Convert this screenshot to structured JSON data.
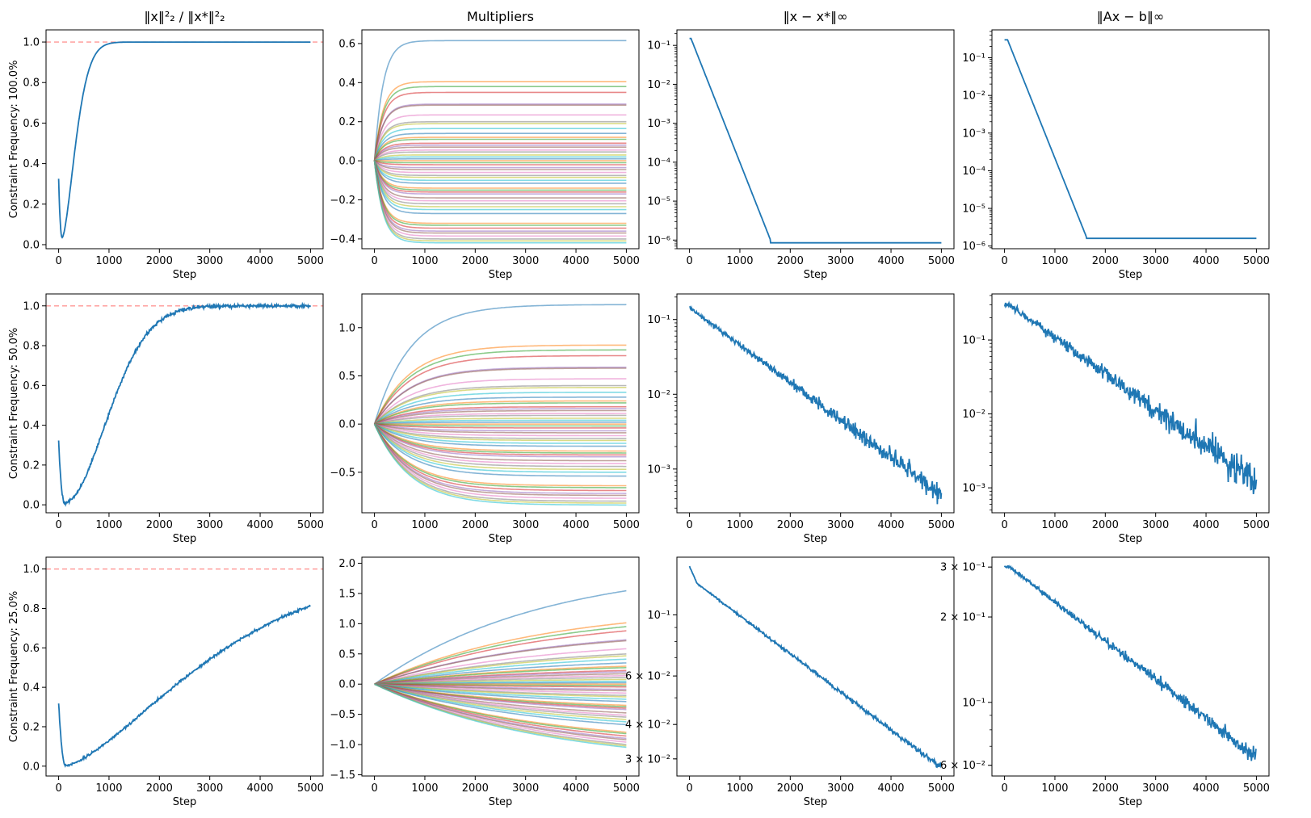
{
  "figure": {
    "col_titles": [
      "‖x‖²₂ / ‖x*‖²₂",
      "Multipliers",
      "‖x − x*‖∞",
      "‖Ax − b‖∞"
    ],
    "row_ylabels": [
      "Constraint Frequency: 100.0%",
      "Constraint Frequency: 50.0%",
      "Constraint Frequency: 25.0%"
    ],
    "xlabel": "Step",
    "colors": {
      "main": "#1f77b4",
      "reference": "#ff9896",
      "palette": [
        "#1f77b4",
        "#ff7f0e",
        "#2ca02c",
        "#d62728",
        "#9467bd",
        "#8c564b",
        "#e377c2",
        "#7f7f7f",
        "#bcbd22",
        "#17becf"
      ]
    }
  },
  "chart_data": [
    {
      "id": "r0c0",
      "type": "line",
      "title": "‖x‖²₂ / ‖x*‖²₂",
      "xlabel": "Step",
      "ylabel": "Constraint Frequency: 100.0%",
      "xlim": [
        -250,
        5250
      ],
      "ylim": [
        -0.02,
        1.06
      ],
      "xticks": [
        0,
        1000,
        2000,
        3000,
        4000,
        5000
      ],
      "yticks": [
        0,
        0.2,
        0.4,
        0.6,
        0.8,
        1.0
      ],
      "ytick_labels": [
        "0.0",
        "0.2",
        "0.4",
        "0.6",
        "0.8",
        "1.0"
      ],
      "yscale": "linear",
      "ref_line": 1.0,
      "curve": {
        "kind": "ratio",
        "min_step": 70,
        "min_val": 0.035,
        "rise_tau": 350,
        "rise_power": 1.6
      },
      "noise": 0.0
    },
    {
      "id": "r0c1",
      "type": "line",
      "title": "Multipliers",
      "xlabel": "Step",
      "xlim": [
        -250,
        5250
      ],
      "ylim": [
        -0.45,
        0.67
      ],
      "xticks": [
        0,
        1000,
        2000,
        3000,
        4000,
        5000
      ],
      "yticks": [
        -0.4,
        -0.2,
        0.0,
        0.2,
        0.4,
        0.6
      ],
      "ytick_labels": [
        "−0.4",
        "−0.2",
        "0.0",
        "0.2",
        "0.4",
        "0.6"
      ],
      "yscale": "linear",
      "multiplier_tau": 170,
      "multiplier_finals": [
        0.615,
        0.405,
        0.38,
        0.35,
        0.29,
        0.285,
        0.235,
        0.2,
        0.19,
        0.165,
        0.14,
        0.12,
        0.11,
        0.09,
        0.08,
        0.07,
        0.055,
        0.045,
        0.03,
        0.02,
        0.01,
        0.0,
        -0.01,
        -0.02,
        -0.035,
        -0.045,
        -0.06,
        -0.075,
        -0.085,
        -0.1,
        -0.115,
        -0.14,
        -0.15,
        -0.16,
        -0.17,
        -0.19,
        -0.205,
        -0.22,
        -0.235,
        -0.25,
        -0.27,
        -0.32,
        -0.33,
        -0.345,
        -0.36,
        -0.37,
        -0.385,
        -0.4,
        -0.41,
        -0.42
      ]
    },
    {
      "id": "r0c2",
      "type": "line",
      "title": "‖x − x*‖∞",
      "xlabel": "Step",
      "xlim": [
        -250,
        5250
      ],
      "ylim": [
        6e-07,
        0.25
      ],
      "xticks": [
        0,
        1000,
        2000,
        3000,
        4000,
        5000
      ],
      "yticks": [
        1e-06,
        1e-05,
        0.0001,
        0.001,
        0.01,
        0.1
      ],
      "ytick_labels": [
        "10⁻⁶",
        "10⁻⁵",
        "10⁻⁴",
        "10⁻³",
        "10⁻²",
        "10⁻¹"
      ],
      "yscale": "log",
      "curve": {
        "kind": "decay",
        "start": 0.15,
        "end": 8.5e-07,
        "rate": 0.00755,
        "hold": 30,
        "floor_step": 1600
      },
      "noise": 0.0
    },
    {
      "id": "r0c3",
      "type": "line",
      "title": "‖Ax − b‖∞",
      "xlabel": "Step",
      "xlim": [
        -250,
        5250
      ],
      "ylim": [
        8.5e-07,
        0.55
      ],
      "xticks": [
        0,
        1000,
        2000,
        3000,
        4000,
        5000
      ],
      "yticks": [
        1e-06,
        1e-05,
        0.0001,
        0.001,
        0.01,
        0.1
      ],
      "ytick_labels": [
        "10⁻⁶",
        "10⁻⁵",
        "10⁻⁴",
        "10⁻³",
        "10⁻²",
        "10⁻¹"
      ],
      "yscale": "log",
      "curve": {
        "kind": "decay",
        "start": 0.3,
        "end": 1.6e-06,
        "rate": 0.0077,
        "hold": 60,
        "floor_step": 1620
      },
      "noise": 0.0
    },
    {
      "id": "r1c0",
      "type": "line",
      "xlabel": "Step",
      "ylabel": "Constraint Frequency: 50.0%",
      "xlim": [
        -250,
        5250
      ],
      "ylim": [
        -0.04,
        1.06
      ],
      "xticks": [
        0,
        1000,
        2000,
        3000,
        4000,
        5000
      ],
      "yticks": [
        0,
        0.2,
        0.4,
        0.6,
        0.8,
        1.0
      ],
      "ytick_labels": [
        "0.0",
        "0.2",
        "0.4",
        "0.6",
        "0.8",
        "1.0"
      ],
      "yscale": "linear",
      "ref_line": 1.0,
      "curve": {
        "kind": "ratio",
        "min_step": 120,
        "min_val": 0.01,
        "rise_tau": 1150,
        "rise_power": 1.9
      },
      "noise": 0.004
    },
    {
      "id": "r1c1",
      "type": "line",
      "xlabel": "Step",
      "xlim": [
        -250,
        5250
      ],
      "ylim": [
        -0.92,
        1.35
      ],
      "xticks": [
        0,
        1000,
        2000,
        3000,
        4000,
        5000
      ],
      "yticks": [
        -0.5,
        0.0,
        0.5,
        1.0
      ],
      "ytick_labels": [
        "−0.5",
        "0.0",
        "0.5",
        "1.0"
      ],
      "yscale": "linear",
      "multiplier_tau": 700,
      "multiplier_finals": [
        1.24,
        0.82,
        0.77,
        0.71,
        0.59,
        0.58,
        0.47,
        0.4,
        0.38,
        0.33,
        0.28,
        0.24,
        0.22,
        0.18,
        0.16,
        0.14,
        0.11,
        0.09,
        0.06,
        0.04,
        0.02,
        0.0,
        -0.02,
        -0.04,
        -0.07,
        -0.09,
        -0.12,
        -0.15,
        -0.17,
        -0.2,
        -0.23,
        -0.28,
        -0.3,
        -0.32,
        -0.34,
        -0.38,
        -0.41,
        -0.44,
        -0.47,
        -0.5,
        -0.54,
        -0.64,
        -0.66,
        -0.69,
        -0.72,
        -0.74,
        -0.77,
        -0.8,
        -0.82,
        -0.84
      ]
    },
    {
      "id": "r1c2",
      "type": "line",
      "xlabel": "Step",
      "xlim": [
        -250,
        5250
      ],
      "ylim": [
        0.00026,
        0.22
      ],
      "xticks": [
        0,
        1000,
        2000,
        3000,
        4000,
        5000
      ],
      "yticks": [
        0.001,
        0.01,
        0.1
      ],
      "ytick_labels": [
        "10⁻³",
        "10⁻²",
        "10⁻¹"
      ],
      "yscale": "log",
      "curve": {
        "kind": "exp",
        "start": 0.145,
        "end": 0.00045
      },
      "noise": 0.16
    },
    {
      "id": "r1c3",
      "type": "line",
      "xlabel": "Step",
      "xlim": [
        -250,
        5250
      ],
      "ylim": [
        0.00046,
        0.42
      ],
      "xticks": [
        0,
        1000,
        2000,
        3000,
        4000,
        5000
      ],
      "yticks": [
        0.001,
        0.01,
        0.1
      ],
      "ytick_labels": [
        "10⁻³",
        "10⁻²",
        "10⁻¹"
      ],
      "yscale": "log",
      "curve": {
        "kind": "exp",
        "start": 0.3,
        "end": 0.0012,
        "hold": 90
      },
      "noise": 0.26
    },
    {
      "id": "r2c0",
      "type": "line",
      "xlabel": "Step",
      "ylabel": "Constraint Frequency: 25.0%",
      "xlim": [
        -250,
        5250
      ],
      "ylim": [
        -0.05,
        1.06
      ],
      "xticks": [
        0,
        1000,
        2000,
        3000,
        4000,
        5000
      ],
      "yticks": [
        0,
        0.2,
        0.4,
        0.6,
        0.8,
        1.0
      ],
      "ytick_labels": [
        "0.0",
        "0.2",
        "0.4",
        "0.6",
        "0.8",
        "1.0"
      ],
      "yscale": "linear",
      "ref_line": 1.0,
      "curve": {
        "kind": "ratio",
        "min_step": 140,
        "min_val": 0.003,
        "rise_tau": 3400,
        "rise_power": 1.45
      },
      "noise": 0.003
    },
    {
      "id": "r2c1",
      "type": "line",
      "xlabel": "Step",
      "xlim": [
        -250,
        5250
      ],
      "ylim": [
        -1.52,
        2.1
      ],
      "xticks": [
        0,
        1000,
        2000,
        3000,
        4000,
        5000
      ],
      "yticks": [
        -1.5,
        -1.0,
        -0.5,
        0.0,
        0.5,
        1.0,
        1.5,
        2.0
      ],
      "ytick_labels": [
        "−1.5",
        "−1.0",
        "−0.5",
        "0.0",
        "0.5",
        "1.0",
        "1.5",
        "2.0"
      ],
      "yscale": "linear",
      "multiplier_tau": 3300,
      "multiplier_finals": [
        1.98,
        1.3,
        1.22,
        1.13,
        0.94,
        0.92,
        0.75,
        0.64,
        0.6,
        0.53,
        0.45,
        0.38,
        0.35,
        0.29,
        0.26,
        0.22,
        0.18,
        0.14,
        0.1,
        0.06,
        0.03,
        0.0,
        -0.03,
        -0.06,
        -0.11,
        -0.14,
        -0.19,
        -0.24,
        -0.27,
        -0.32,
        -0.37,
        -0.45,
        -0.48,
        -0.51,
        -0.54,
        -0.61,
        -0.66,
        -0.7,
        -0.75,
        -0.8,
        -0.86,
        -1.02,
        -1.05,
        -1.1,
        -1.15,
        -1.18,
        -1.23,
        -1.28,
        -1.31,
        -1.34
      ]
    },
    {
      "id": "r2c2",
      "type": "line",
      "xlabel": "Step",
      "xlim": [
        -250,
        5250
      ],
      "ylim": [
        0.026,
        0.162
      ],
      "xticks": [
        0,
        1000,
        2000,
        3000,
        4000,
        5000
      ],
      "yticks": [
        0.03,
        0.04,
        0.06,
        0.1
      ],
      "ytick_labels": [
        "3 × 10⁻²",
        "4 × 10⁻²",
        "6 × 10⁻²",
        "10⁻¹"
      ],
      "yscale": "log",
      "curve": {
        "kind": "kink",
        "start": 0.15,
        "knee_step": 150,
        "knee_val": 0.13,
        "end": 0.0278
      },
      "noise": 0.012
    },
    {
      "id": "r2c3",
      "type": "line",
      "xlabel": "Step",
      "xlim": [
        -250,
        5250
      ],
      "ylim": [
        0.055,
        0.325
      ],
      "xticks": [
        0,
        1000,
        2000,
        3000,
        4000,
        5000
      ],
      "yticks": [
        0.06,
        0.1,
        0.2,
        0.3
      ],
      "ytick_labels": [
        "6 × 10⁻²",
        "10⁻¹",
        "2 × 10⁻¹",
        "3 × 10⁻¹"
      ],
      "yscale": "log",
      "curve": {
        "kind": "exp",
        "start": 0.3,
        "end": 0.064,
        "hold": 100
      },
      "noise": 0.035
    }
  ]
}
